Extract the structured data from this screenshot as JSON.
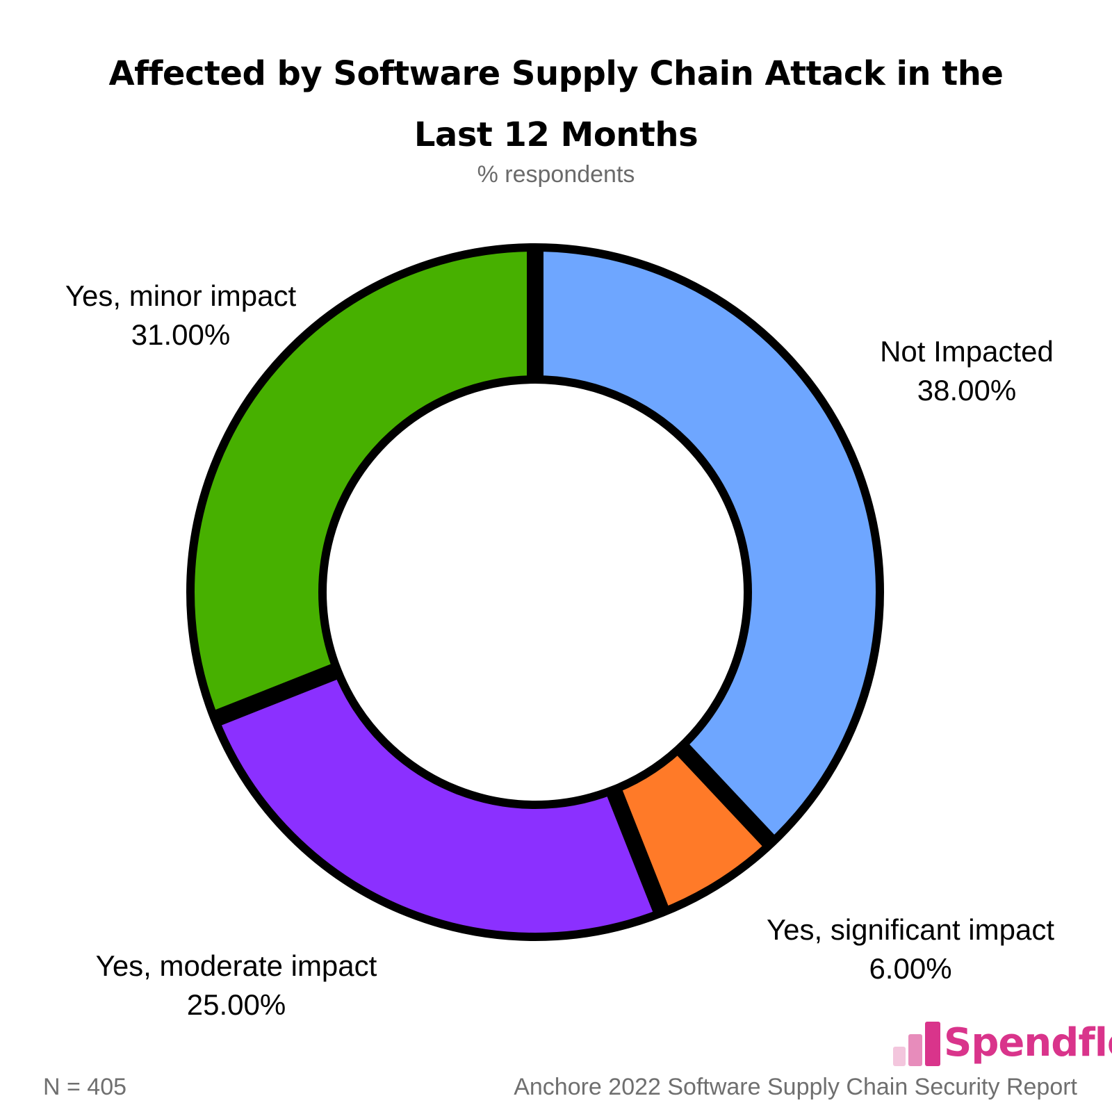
{
  "chart_data": {
    "type": "pie",
    "title": "Affected by Software Supply Chain Attack in the Last 12 Months",
    "title_lines": [
      "Affected by Software Supply Chain Attack in the",
      "Last 12 Months"
    ],
    "subtitle": "% respondents",
    "donut": true,
    "slices": [
      {
        "label": "Not Impacted",
        "value": 38.0,
        "display": "38.00%",
        "color": "#6ea6ff"
      },
      {
        "label": "Yes, significant impact",
        "value": 6.0,
        "display": "6.00%",
        "color": "#ff7a28"
      },
      {
        "label": "Yes, moderate impact",
        "value": 25.0,
        "display": "25.00%",
        "color": "#8b30ff"
      },
      {
        "label": "Yes, minor impact",
        "value": 31.0,
        "display": "31.00%",
        "color": "#47b000"
      }
    ]
  },
  "footer": {
    "sample_size": "N = 405",
    "source": "Anchore 2022 Software Supply Chain Security Report"
  },
  "logo": {
    "text": "Spendflo",
    "color": "#d9348b"
  }
}
